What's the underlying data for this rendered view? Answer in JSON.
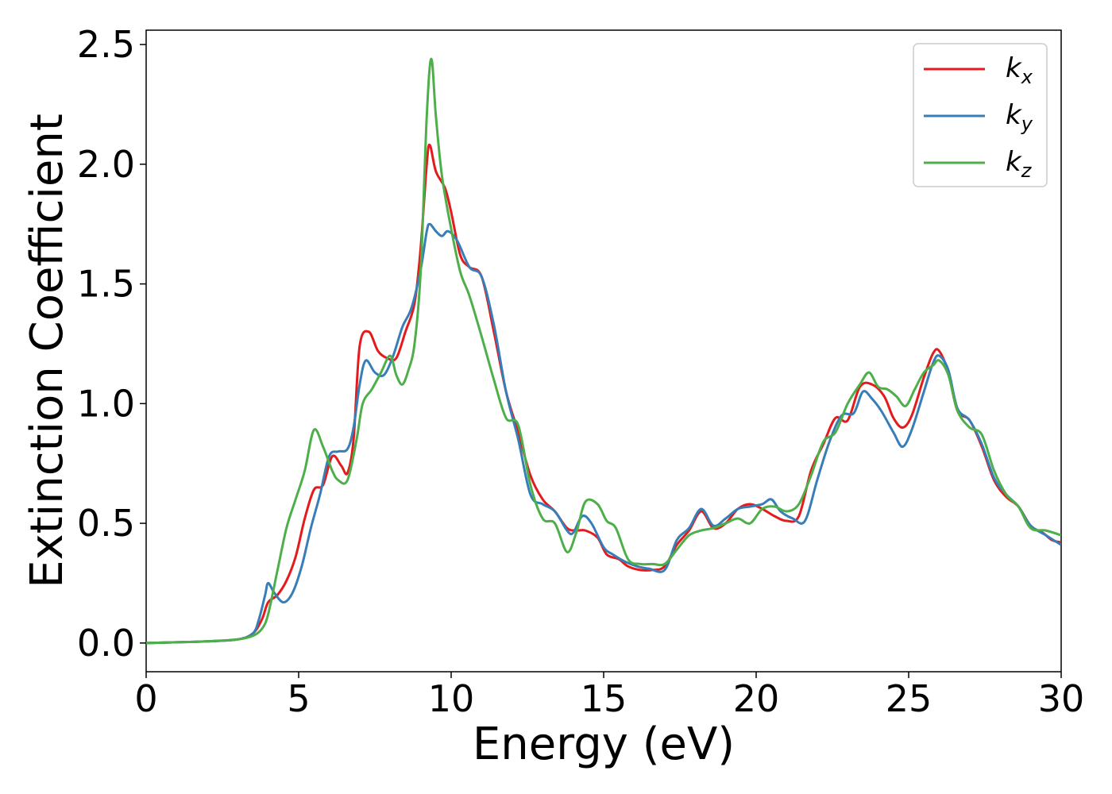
{
  "chart_data": {
    "type": "line",
    "xlabel": "Energy (eV)",
    "ylabel": "Extinction Coefficient",
    "xlim": [
      0,
      30
    ],
    "ylim": [
      -0.12,
      2.56
    ],
    "xticks": [
      0,
      5,
      10,
      15,
      20,
      25,
      30
    ],
    "xtick_labels": [
      "0",
      "5",
      "10",
      "15",
      "20",
      "25",
      "30"
    ],
    "yticks": [
      0.0,
      0.5,
      1.0,
      1.5,
      2.0,
      2.5
    ],
    "ytick_labels": [
      "0.0",
      "0.5",
      "1.0",
      "1.5",
      "2.0",
      "2.5"
    ],
    "grid": false,
    "legend_position": "top-right",
    "series": [
      {
        "name": "k",
        "subscript": "x",
        "color": "#e41a1c",
        "x": [
          0,
          1,
          2,
          3,
          3.5,
          3.8,
          4.0,
          4.3,
          4.6,
          4.9,
          5.2,
          5.5,
          5.8,
          6.1,
          6.4,
          6.6,
          6.8,
          7.0,
          7.3,
          7.6,
          7.9,
          8.2,
          8.5,
          8.8,
          9.0,
          9.2,
          9.3,
          9.5,
          9.8,
          10.0,
          10.3,
          10.6,
          11.0,
          11.4,
          11.8,
          12.2,
          12.6,
          13.0,
          13.4,
          13.8,
          14.1,
          14.4,
          14.8,
          15.1,
          15.5,
          15.8,
          16.2,
          16.6,
          17.0,
          17.4,
          17.8,
          18.2,
          18.6,
          19.0,
          19.4,
          19.8,
          20.2,
          20.6,
          21.0,
          21.4,
          21.8,
          22.2,
          22.6,
          23.0,
          23.4,
          23.8,
          24.2,
          24.5,
          24.8,
          25.1,
          25.5,
          25.8,
          26.0,
          26.3,
          26.6,
          27.0,
          27.4,
          27.8,
          28.2,
          28.6,
          29.0,
          29.4,
          29.7,
          30.0
        ],
        "values": [
          0.0,
          0.003,
          0.007,
          0.015,
          0.04,
          0.1,
          0.17,
          0.2,
          0.26,
          0.36,
          0.52,
          0.64,
          0.66,
          0.78,
          0.74,
          0.71,
          0.85,
          1.24,
          1.3,
          1.22,
          1.19,
          1.19,
          1.3,
          1.42,
          1.65,
          2.0,
          2.08,
          1.97,
          1.9,
          1.8,
          1.62,
          1.57,
          1.53,
          1.3,
          1.05,
          0.88,
          0.7,
          0.6,
          0.55,
          0.48,
          0.47,
          0.47,
          0.44,
          0.37,
          0.35,
          0.32,
          0.305,
          0.305,
          0.32,
          0.41,
          0.47,
          0.55,
          0.48,
          0.5,
          0.56,
          0.58,
          0.56,
          0.53,
          0.51,
          0.53,
          0.72,
          0.83,
          0.94,
          0.93,
          1.07,
          1.08,
          1.03,
          0.94,
          0.9,
          0.95,
          1.11,
          1.21,
          1.22,
          1.13,
          0.97,
          0.93,
          0.82,
          0.68,
          0.61,
          0.57,
          0.49,
          0.46,
          0.43,
          0.42
        ]
      },
      {
        "name": "k",
        "subscript": "y",
        "color": "#377eb8",
        "x": [
          0,
          1,
          2,
          3,
          3.5,
          3.7,
          3.9,
          4.0,
          4.2,
          4.5,
          4.8,
          5.1,
          5.4,
          5.7,
          6.0,
          6.3,
          6.6,
          6.8,
          7.0,
          7.2,
          7.5,
          7.8,
          8.1,
          8.4,
          8.7,
          9.0,
          9.2,
          9.3,
          9.5,
          9.7,
          9.9,
          10.2,
          10.6,
          11.0,
          11.4,
          11.8,
          12.2,
          12.6,
          13.0,
          13.4,
          13.8,
          14.0,
          14.3,
          14.6,
          15.0,
          15.3,
          15.7,
          16.1,
          16.5,
          17.0,
          17.4,
          17.8,
          18.2,
          18.6,
          19.0,
          19.4,
          19.8,
          20.2,
          20.5,
          20.8,
          21.2,
          21.6,
          22.0,
          22.4,
          22.8,
          23.2,
          23.5,
          23.8,
          24.1,
          24.5,
          24.8,
          25.1,
          25.5,
          25.8,
          26.0,
          26.3,
          26.6,
          27.0,
          27.4,
          27.8,
          28.2,
          28.6,
          29.0,
          29.5,
          30.0
        ],
        "values": [
          0.0,
          0.003,
          0.007,
          0.015,
          0.04,
          0.1,
          0.2,
          0.25,
          0.21,
          0.17,
          0.21,
          0.32,
          0.48,
          0.62,
          0.78,
          0.8,
          0.81,
          0.9,
          1.08,
          1.18,
          1.13,
          1.12,
          1.2,
          1.32,
          1.4,
          1.56,
          1.72,
          1.75,
          1.72,
          1.7,
          1.72,
          1.68,
          1.57,
          1.53,
          1.33,
          1.05,
          0.85,
          0.62,
          0.58,
          0.55,
          0.47,
          0.46,
          0.53,
          0.5,
          0.4,
          0.37,
          0.34,
          0.32,
          0.31,
          0.305,
          0.43,
          0.48,
          0.56,
          0.49,
          0.52,
          0.56,
          0.57,
          0.58,
          0.6,
          0.55,
          0.52,
          0.51,
          0.68,
          0.84,
          0.95,
          0.96,
          1.05,
          1.02,
          0.97,
          0.88,
          0.82,
          0.89,
          1.05,
          1.17,
          1.2,
          1.14,
          0.98,
          0.93,
          0.83,
          0.69,
          0.62,
          0.57,
          0.49,
          0.45,
          0.41
        ]
      },
      {
        "name": "k",
        "subscript": "z",
        "color": "#4daf4a",
        "x": [
          0,
          1,
          2,
          3,
          3.5,
          3.8,
          4.0,
          4.3,
          4.6,
          4.9,
          5.2,
          5.5,
          5.8,
          6.1,
          6.3,
          6.6,
          6.9,
          7.1,
          7.4,
          7.7,
          8.0,
          8.2,
          8.4,
          8.6,
          8.8,
          9.0,
          9.2,
          9.35,
          9.5,
          9.7,
          10.0,
          10.3,
          10.6,
          11.0,
          11.4,
          11.8,
          12.2,
          12.6,
          13.0,
          13.4,
          13.8,
          14.1,
          14.4,
          14.8,
          15.1,
          15.4,
          15.8,
          16.2,
          16.6,
          17.0,
          17.4,
          17.8,
          18.2,
          18.6,
          19.0,
          19.4,
          19.8,
          20.2,
          20.6,
          21.0,
          21.4,
          21.8,
          22.2,
          22.6,
          23.0,
          23.4,
          23.7,
          24.0,
          24.3,
          24.6,
          24.9,
          25.2,
          25.5,
          25.8,
          26.0,
          26.3,
          26.6,
          27.0,
          27.4,
          27.8,
          28.2,
          28.6,
          29.0,
          29.5,
          30.0
        ],
        "values": [
          0.0,
          0.003,
          0.007,
          0.015,
          0.03,
          0.06,
          0.12,
          0.3,
          0.48,
          0.6,
          0.72,
          0.89,
          0.82,
          0.72,
          0.68,
          0.68,
          0.85,
          1.0,
          1.06,
          1.13,
          1.2,
          1.12,
          1.08,
          1.14,
          1.25,
          1.55,
          2.2,
          2.44,
          2.2,
          1.95,
          1.73,
          1.55,
          1.45,
          1.28,
          1.1,
          0.94,
          0.91,
          0.66,
          0.52,
          0.5,
          0.38,
          0.46,
          0.59,
          0.58,
          0.51,
          0.48,
          0.35,
          0.33,
          0.33,
          0.33,
          0.39,
          0.45,
          0.47,
          0.48,
          0.5,
          0.52,
          0.5,
          0.56,
          0.57,
          0.55,
          0.58,
          0.7,
          0.84,
          0.88,
          1.0,
          1.08,
          1.13,
          1.07,
          1.06,
          1.03,
          0.99,
          1.06,
          1.13,
          1.16,
          1.18,
          1.12,
          0.97,
          0.9,
          0.87,
          0.72,
          0.62,
          0.57,
          0.48,
          0.47,
          0.45
        ]
      }
    ]
  }
}
